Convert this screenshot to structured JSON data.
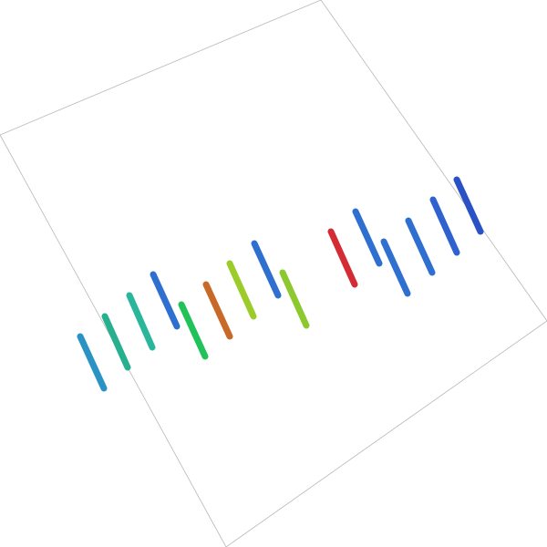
{
  "panel": {
    "border_color": "#b8b8b8",
    "background": "#ffffff"
  },
  "bars": [
    {
      "color": "#2a93c4"
    },
    {
      "color": "#26b08f"
    },
    {
      "color": "#2ab69a"
    },
    {
      "color": "#2f6fcf"
    },
    {
      "color": "#22c25a"
    },
    {
      "color": "#c8692a"
    },
    {
      "color": "#9ccc2a"
    },
    {
      "color": "#2f6fcf"
    },
    {
      "color": "#8cc82e"
    },
    {
      "color": "#d42c34"
    },
    {
      "color": "#2f6fcf"
    },
    {
      "color": "#2f6fcf"
    },
    {
      "color": "#2f6fcf"
    },
    {
      "color": "#2f62cf"
    },
    {
      "color": "#2a52c4"
    }
  ]
}
